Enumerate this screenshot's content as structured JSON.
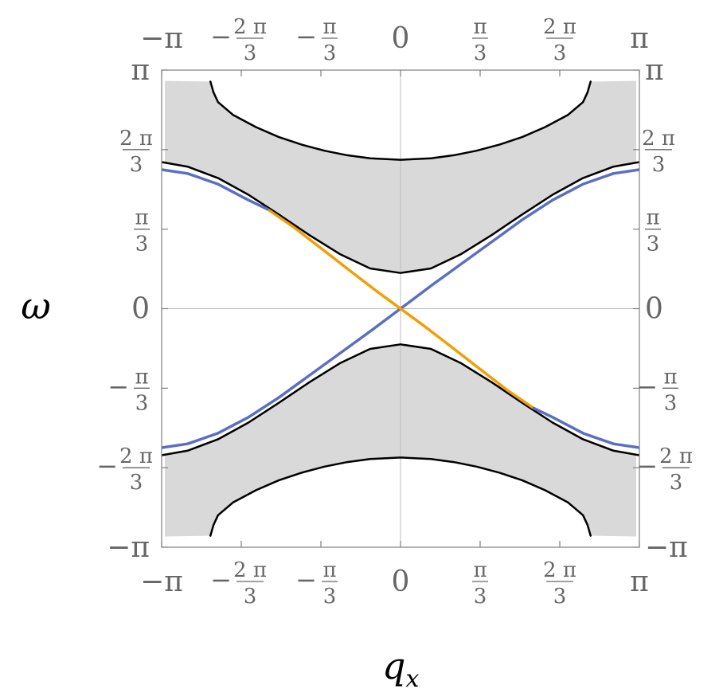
{
  "chart_data": {
    "type": "line",
    "title": "",
    "xlabel": "q",
    "xlabel_subscript": "x",
    "ylabel": "ω",
    "xlim": [
      -3.14159,
      3.14159
    ],
    "ylim": [
      -3.14159,
      3.14159
    ],
    "grid": "axes lines at 0",
    "frame_ticks_all_sides": true,
    "ticks": [
      {
        "value": -3.14159,
        "label": "−π",
        "frac": false
      },
      {
        "value": -2.0944,
        "sign": "−",
        "num": "2 π",
        "den": "3",
        "frac": true
      },
      {
        "value": -1.0472,
        "sign": "−",
        "num": "π",
        "den": "3",
        "frac": true
      },
      {
        "value": 0,
        "label": "0",
        "frac": false
      },
      {
        "value": 1.0472,
        "sign": "",
        "num": "π",
        "den": "3",
        "frac": true
      },
      {
        "value": 2.0944,
        "sign": "",
        "num": "2 π",
        "den": "3",
        "frac": true
      },
      {
        "value": 3.14159,
        "label": "π",
        "frac": false
      }
    ],
    "shaded_region_color": "#d9d9d9",
    "series": [
      {
        "color": "#000000",
        "role": "continuum-edge-upper-outer",
        "x": [
          -2.5,
          -2.46,
          -2.4,
          -2.2,
          -1.9,
          -1.6,
          -1.3,
          -1.0,
          -0.7,
          -0.4,
          0,
          0.4,
          0.7,
          1.0,
          1.3,
          1.6,
          1.9,
          2.2,
          2.4,
          2.46,
          2.5
        ],
        "y": [
          2.99,
          2.85,
          2.72,
          2.55,
          2.39,
          2.26,
          2.16,
          2.08,
          2.02,
          1.98,
          1.96,
          1.98,
          2.02,
          2.08,
          2.16,
          2.26,
          2.39,
          2.55,
          2.72,
          2.85,
          2.99
        ]
      },
      {
        "color": "#000000",
        "role": "continuum-edge-upper-inner",
        "x": [
          -3.14,
          -2.8,
          -2.4,
          -2.0,
          -1.6,
          -1.2,
          -0.8,
          -0.4,
          0,
          0.4,
          0.8,
          1.2,
          1.6,
          2.0,
          2.4,
          2.8,
          3.14
        ],
        "y": [
          1.93,
          1.87,
          1.72,
          1.5,
          1.24,
          0.97,
          0.72,
          0.53,
          0.47,
          0.53,
          0.72,
          0.97,
          1.24,
          1.5,
          1.72,
          1.87,
          1.93
        ]
      },
      {
        "color": "#000000",
        "role": "continuum-edge-lower-inner",
        "x": [
          -3.14,
          -2.8,
          -2.4,
          -2.0,
          -1.6,
          -1.2,
          -0.8,
          -0.4,
          0,
          0.4,
          0.8,
          1.2,
          1.6,
          2.0,
          2.4,
          2.8,
          3.14
        ],
        "y": [
          -1.93,
          -1.87,
          -1.72,
          -1.5,
          -1.24,
          -0.97,
          -0.72,
          -0.53,
          -0.47,
          -0.53,
          -0.72,
          -0.97,
          -1.24,
          -1.5,
          -1.72,
          -1.87,
          -1.93
        ]
      },
      {
        "color": "#000000",
        "role": "continuum-edge-lower-outer",
        "x": [
          -2.5,
          -2.46,
          -2.4,
          -2.2,
          -1.9,
          -1.6,
          -1.3,
          -1.0,
          -0.7,
          -0.4,
          0,
          0.4,
          0.7,
          1.0,
          1.3,
          1.6,
          1.9,
          2.2,
          2.4,
          2.46,
          2.5
        ],
        "y": [
          -2.99,
          -2.85,
          -2.72,
          -2.55,
          -2.39,
          -2.26,
          -2.16,
          -2.08,
          -2.02,
          -1.98,
          -1.96,
          -1.98,
          -2.02,
          -2.08,
          -2.16,
          -2.26,
          -2.39,
          -2.55,
          -2.72,
          -2.85,
          -2.99
        ]
      },
      {
        "color": "#5b6fc2",
        "role": "edge-mode-positive-slope",
        "x": [
          -3.14,
          -2.8,
          -2.4,
          -2.0,
          -1.6,
          -1.2,
          -0.8,
          -0.4,
          0,
          0.4,
          0.8,
          1.2,
          1.6,
          2.0,
          2.4,
          2.8,
          3.14
        ],
        "y": [
          -1.83,
          -1.78,
          -1.64,
          -1.43,
          -1.17,
          -0.88,
          -0.59,
          -0.3,
          0,
          0.3,
          0.59,
          0.88,
          1.17,
          1.43,
          1.64,
          1.78,
          1.83
        ]
      },
      {
        "color": "#f29f05",
        "role": "edge-mode-negative-slope",
        "x": [
          -1.75,
          -1.4,
          -1.0,
          -0.6,
          -0.3,
          0,
          0.3,
          0.6,
          1.0,
          1.4,
          1.75
        ],
        "y": [
          1.31,
          1.07,
          0.76,
          0.45,
          0.22,
          0,
          -0.22,
          -0.45,
          -0.76,
          -1.07,
          -1.31
        ]
      },
      {
        "color": "#5b6fc2",
        "role": "edge-mode-negative-slope-outer-left",
        "x": [
          -3.14,
          -2.8,
          -2.4,
          -2.0,
          -1.75
        ],
        "y": [
          1.83,
          1.78,
          1.64,
          1.43,
          1.31
        ]
      },
      {
        "color": "#5b6fc2",
        "role": "edge-mode-negative-slope-outer-right",
        "x": [
          1.75,
          2.0,
          2.4,
          2.8,
          3.14
        ],
        "y": [
          -1.31,
          -1.43,
          -1.64,
          -1.78,
          -1.83
        ]
      }
    ]
  }
}
